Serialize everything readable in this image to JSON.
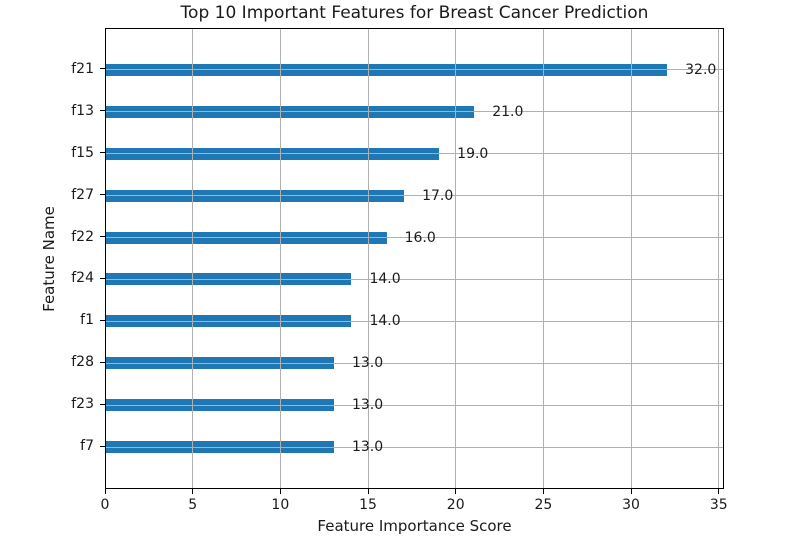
{
  "chart_data": {
    "type": "bar",
    "orientation": "horizontal",
    "title": "Top 10 Important Features for Breast Cancer Prediction",
    "xlabel": "Feature Importance Score",
    "ylabel": "Feature Name",
    "categories": [
      "f21",
      "f13",
      "f15",
      "f27",
      "f22",
      "f24",
      "f1",
      "f28",
      "f23",
      "f7"
    ],
    "values": [
      32.0,
      21.0,
      19.0,
      17.0,
      16.0,
      14.0,
      14.0,
      13.0,
      13.0,
      13.0
    ],
    "value_labels": [
      "32.0",
      "21.0",
      "19.0",
      "17.0",
      "16.0",
      "14.0",
      "14.0",
      "13.0",
      "13.0",
      "13.0"
    ],
    "xlim": [
      0,
      35.3
    ],
    "xticks": [
      0,
      5,
      10,
      15,
      20,
      25,
      30,
      35
    ],
    "grid": true,
    "grid_over_bars": true,
    "legend": null,
    "colors": {
      "bar": "#1f77b4",
      "grid": "#b0b0b0",
      "spine": "#000000",
      "text": "#1a1a1a",
      "background": "#ffffff"
    }
  }
}
